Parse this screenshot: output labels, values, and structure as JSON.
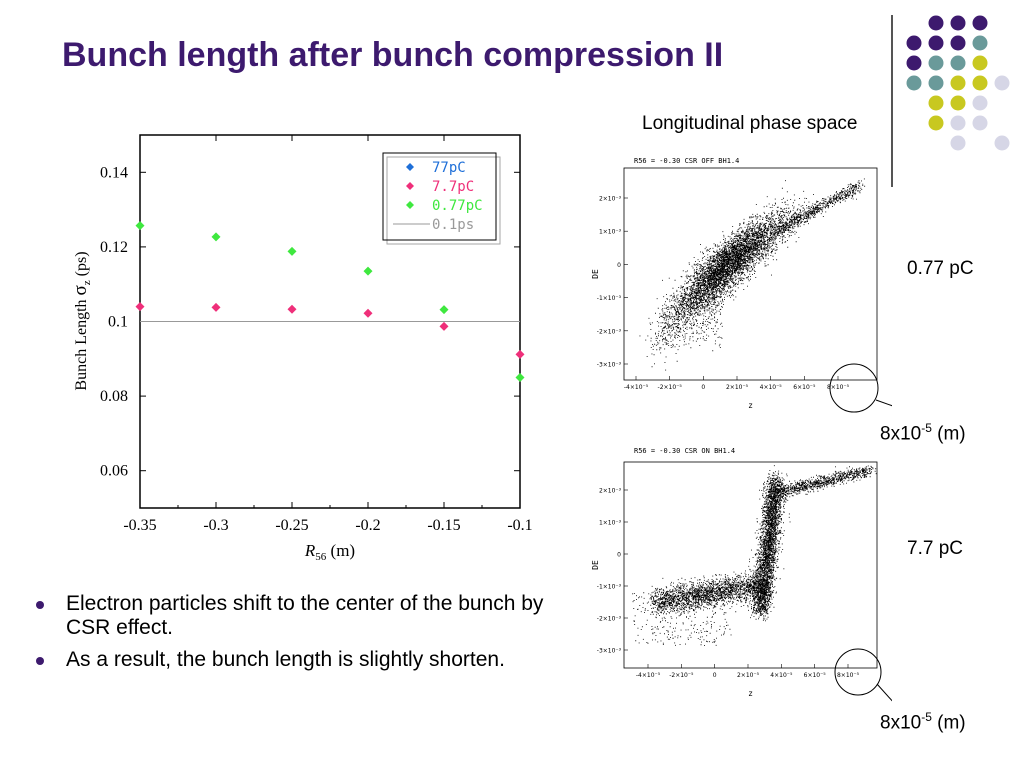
{
  "slide": {
    "title": "Bunch length after bunch compression II",
    "phase_title": "Longitudinal phase space",
    "label_top": "0.77 pC",
    "label_bottom": "7.7 pC",
    "scale_base": "8x10",
    "scale_exp": "-5",
    "scale_unit": " (m)",
    "bullets": [
      "Electron particles shift to the center of the bunch by CSR effect.",
      "As a result, the bunch length is slightly shorten."
    ],
    "colors": {
      "title": "#3d1a6e",
      "dot_purple": "#3d1a6e",
      "dot_teal": "#6a9a9a",
      "dot_yellow": "#c8c820",
      "dot_lavender": "#d6d6e6"
    }
  },
  "chart_data": [
    {
      "type": "scatter",
      "xlabel": "R56 (m)",
      "ylabel": "Bunch Length σz (ps)",
      "xlim": [
        -0.35,
        -0.1
      ],
      "ylim": [
        0.05,
        0.15
      ],
      "x_ticks": [
        "-0.35",
        "-0.3",
        "-0.25",
        "-0.2",
        "-0.15",
        "-0.1"
      ],
      "y_ticks": [
        "0.06",
        "0.08",
        "0.1",
        "0.12",
        "0.14"
      ],
      "legend_position": "top-right",
      "series": [
        {
          "name": "77pC",
          "color": "#1e6fd8",
          "x": [],
          "y": []
        },
        {
          "name": "7.7pC",
          "color": "#ef2f7a",
          "x": [
            -0.35,
            -0.3,
            -0.25,
            -0.2,
            -0.15,
            -0.1
          ],
          "y": [
            0.104,
            0.1038,
            0.1033,
            0.1022,
            0.0987,
            0.0912
          ]
        },
        {
          "name": "0.77pC",
          "color": "#3fe83f",
          "x": [
            -0.35,
            -0.3,
            -0.25,
            -0.2,
            -0.15,
            -0.1
          ],
          "y": [
            0.1257,
            0.1227,
            0.1188,
            0.1135,
            0.1032,
            0.085
          ]
        },
        {
          "name": "0.1ps",
          "color": "#999999",
          "type": "line",
          "y_const": 0.1
        }
      ]
    },
    {
      "type": "scatter",
      "title": "R56 = -0.30 CSR OFF BH1.4",
      "xlabel": "z",
      "ylabel": "DE",
      "x_ticks": [
        "-4×10⁻⁵",
        "-2×10⁻⁵",
        "0",
        "2×10⁻⁵",
        "4×10⁻⁵",
        "6×10⁻⁵",
        "8×10⁻⁵"
      ],
      "y_ticks": [
        "2×10⁻³",
        "1×10⁻³",
        "0",
        "-1×10⁻³",
        "-2×10⁻³",
        "-3×10⁻³"
      ],
      "annotation": "circle around 8×10⁻⁵ tick"
    },
    {
      "type": "scatter",
      "title": "R56 = -0.30 CSR ON BH1.4",
      "xlabel": "z",
      "ylabel": "DE",
      "x_ticks": [
        "-4×10⁻⁵",
        "-2×10⁻⁵",
        "0",
        "2×10⁻⁵",
        "4×10⁻⁵",
        "6×10⁻⁵",
        "8×10⁻⁵"
      ],
      "y_ticks": [
        "2×10⁻³",
        "1×10⁻³",
        "0",
        "-1×10⁻³",
        "-2×10⁻³",
        "-3×10⁻³"
      ],
      "annotation": "circle around 8×10⁻⁵ tick"
    }
  ]
}
